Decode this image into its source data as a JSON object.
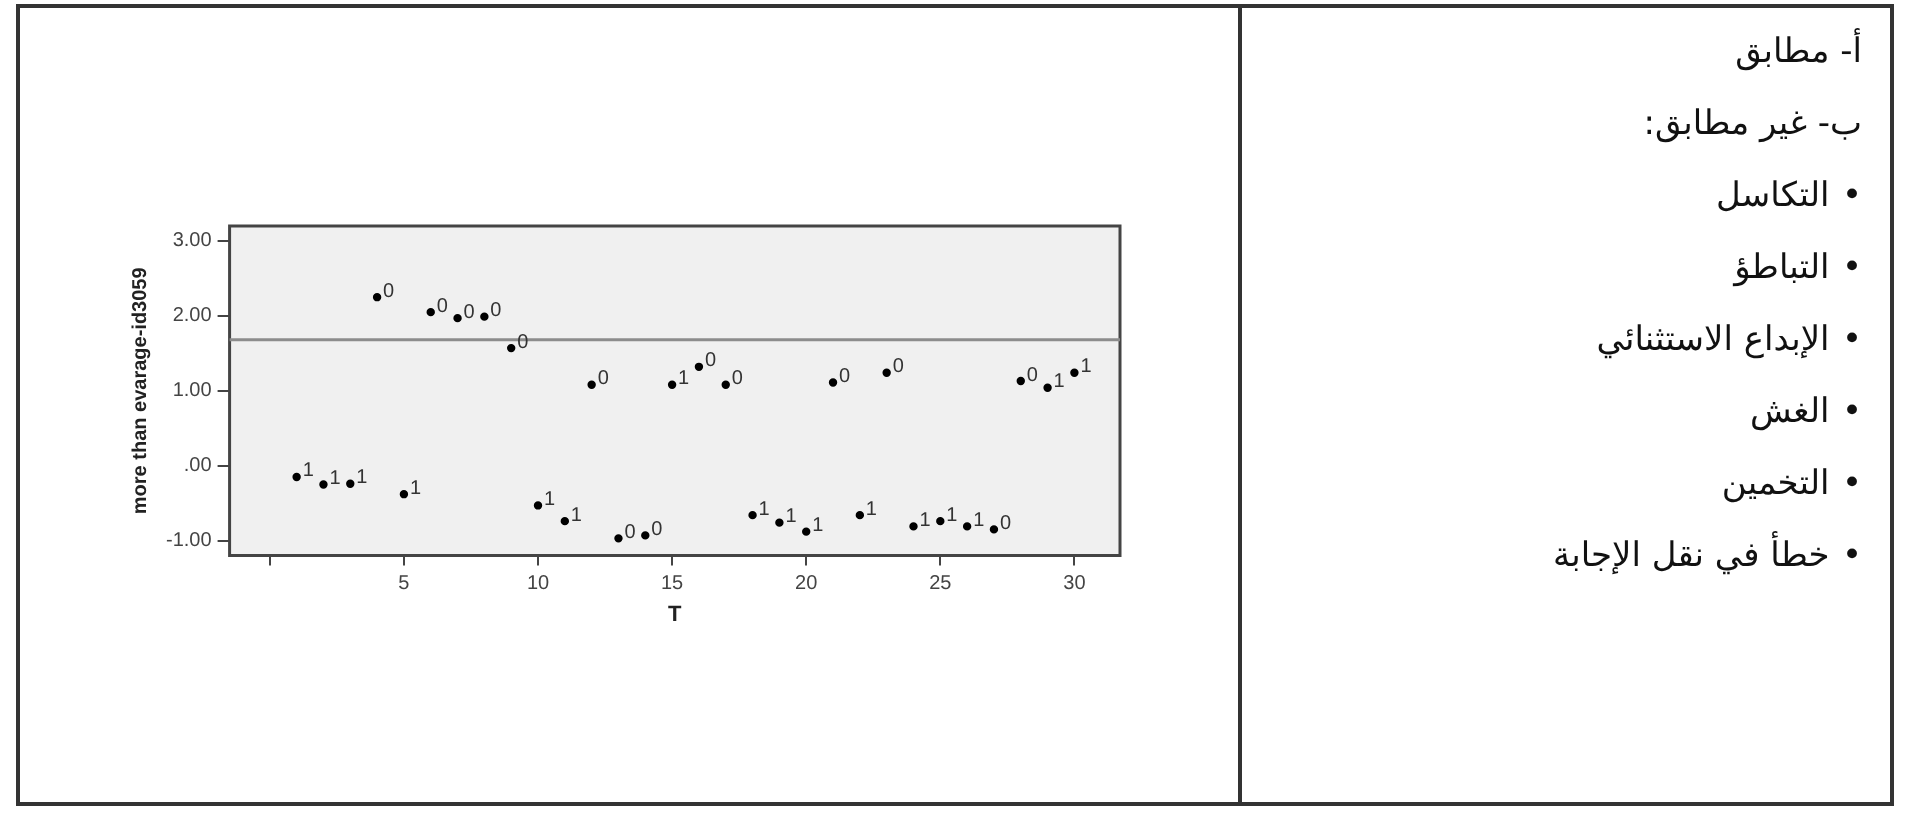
{
  "chart_data": {
    "type": "scatter",
    "xlabel": "T",
    "ylabel": "more than evarage-id3059",
    "series": [
      {
        "name": "1",
        "color": "#000000",
        "x": [
          1,
          2,
          3,
          5,
          10,
          11,
          15,
          18,
          19,
          20,
          22,
          24,
          25,
          26,
          29,
          30
        ],
        "values": [
          -0.15,
          -0.25,
          -0.24,
          -0.38,
          -0.53,
          -0.74,
          1.08,
          -0.66,
          -0.76,
          -0.88,
          -0.66,
          -0.81,
          -0.74,
          -0.81,
          1.04,
          1.24
        ]
      },
      {
        "name": "0",
        "color": "#000000",
        "x": [
          4,
          6,
          7,
          8,
          9,
          12,
          13,
          14,
          16,
          17,
          21,
          23,
          27,
          28
        ],
        "values": [
          2.25,
          2.05,
          1.97,
          1.99,
          1.57,
          1.08,
          -0.97,
          -0.93,
          1.32,
          1.08,
          1.11,
          1.24,
          -0.85,
          1.13
        ]
      }
    ],
    "marker": "circle",
    "xlim": [
      -1.5,
      31.7
    ],
    "xticks": [
      {
        "value": 0,
        "label": null
      },
      5,
      10,
      15,
      20,
      25,
      30
    ],
    "ylim": [
      -1.2,
      3.2
    ],
    "yticks": [
      {
        "value": -1,
        "label": "-1.00"
      },
      {
        "value": 0,
        "label": ".00"
      },
      {
        "value": 1,
        "label": "1.00"
      },
      {
        "value": 2,
        "label": "2.00"
      },
      {
        "value": 3,
        "label": "3.00"
      }
    ],
    "ref_lines": [
      {
        "axis": "y",
        "value": 1.68,
        "color": "#8c8c8c"
      }
    ],
    "grid": false,
    "legend": false,
    "annotations": [
      "أ- مطابق",
      "ب- غير مطابق:",
      "•\tالتكاسل",
      "•\tالتباطؤ",
      "•\tالإبداع الاستثنائي",
      "•\tالغش",
      "•\tالتخمين",
      "•\tخطأ في نقل الإجابة"
    ]
  }
}
